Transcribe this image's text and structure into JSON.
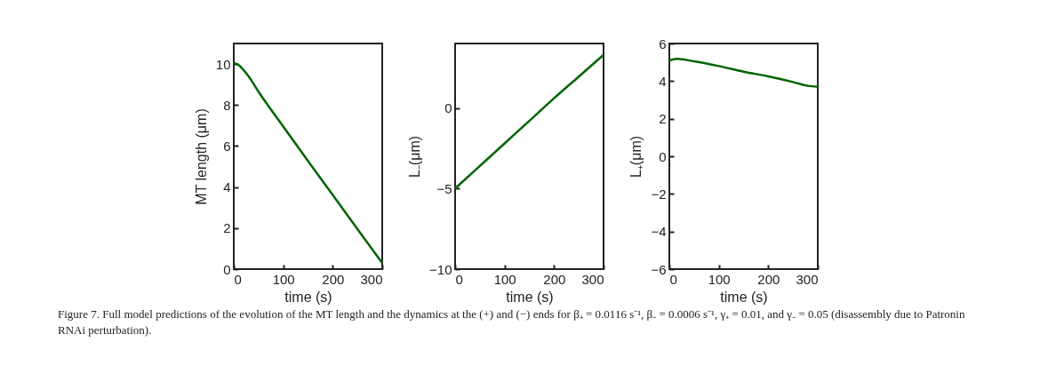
{
  "chart_data": [
    {
      "type": "line",
      "x": [
        0,
        10,
        20,
        30,
        50,
        100,
        150,
        200,
        250,
        300
      ],
      "xlabel": "time (s)",
      "ylabel": "MT length (μm)",
      "xlim": [
        0,
        300
      ],
      "xticks": [
        0,
        100,
        200,
        300
      ],
      "ylim": [
        0,
        11
      ],
      "yticks": [
        0,
        2,
        4,
        6,
        8,
        10
      ],
      "grid": false,
      "series": [
        {
          "color": "#006400",
          "values": [
            10.05,
            9.95,
            9.7,
            9.4,
            8.65,
            6.95,
            5.27,
            3.62,
            1.95,
            0.3
          ]
        }
      ],
      "annotations": [
        "Figure 7. Full model predictions of the evolution of the MT length and the dynamics at the (+) and (−) ends for β₊ = 0.0116 s⁻¹, β₋ = 0.0006 s⁻¹, γ₊ = 0.01, and γ₋ = 0.05 (disassembly due to Patronin RNAi perturbation)."
      ]
    },
    {
      "type": "line",
      "x": [
        0,
        50,
        100,
        150,
        200,
        250,
        300
      ],
      "xlabel": "time (s)",
      "ylabel": "L₋(μm)",
      "xlim": [
        0,
        300
      ],
      "xticks": [
        0,
        100,
        200,
        300
      ],
      "ylim": [
        -10,
        4
      ],
      "yticks": [
        -10,
        -5,
        0
      ],
      "grid": false,
      "series": [
        {
          "color": "#006400",
          "values": [
            -5,
            -3.6,
            -2.2,
            -0.8,
            0.6,
            1.95,
            3.3
          ]
        }
      ]
    },
    {
      "type": "line",
      "x": [
        0,
        15,
        50,
        100,
        150,
        200,
        250,
        280,
        300
      ],
      "xlabel": "time (s)",
      "ylabel": "L₊(μm)",
      "xlim": [
        0,
        300
      ],
      "xticks": [
        0,
        100,
        200,
        300
      ],
      "ylim": [
        -6,
        6
      ],
      "yticks": [
        -6,
        -4,
        -2,
        0,
        2,
        4,
        6
      ],
      "grid": false,
      "series": [
        {
          "color": "#006400",
          "values": [
            5.1,
            5.18,
            5.05,
            4.8,
            4.5,
            4.25,
            3.95,
            3.75,
            3.7
          ]
        }
      ]
    }
  ]
}
